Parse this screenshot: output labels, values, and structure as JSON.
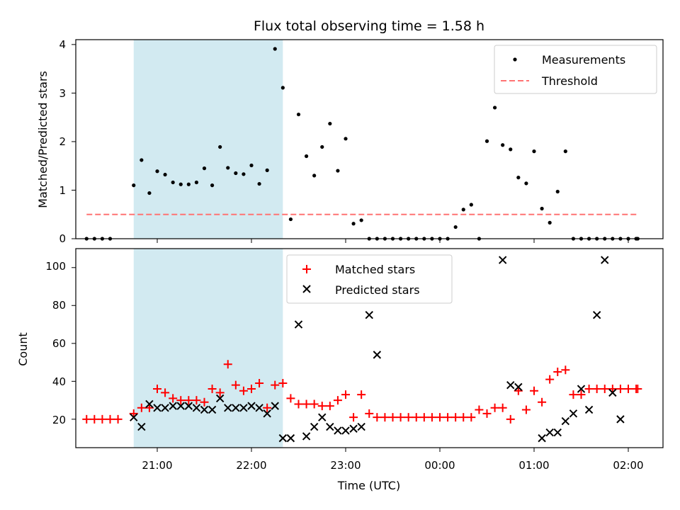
{
  "figure": {
    "title": "Flux total observing time = 1.58 h",
    "xlabel": "Time (UTC)",
    "x_tick_labels": [
      "21:00",
      "22:00",
      "23:00",
      "00:00",
      "01:00",
      "02:00"
    ],
    "highlight_color": "#add8e6",
    "highlight_span": [
      "20:45",
      "22:20"
    ]
  },
  "chart_data": [
    {
      "type": "scatter",
      "ylabel": "Matched/Predicted stars",
      "ylim": [
        0,
        4.1
      ],
      "yticks": [
        "0",
        "1",
        "2",
        "3",
        "4"
      ],
      "legend_position": "top-right",
      "series": [
        {
          "name": "Measurements",
          "color": "#000000",
          "marker": "dot",
          "points": [
            [
              "20:15",
              0
            ],
            [
              "20:20",
              0
            ],
            [
              "20:25",
              0
            ],
            [
              "20:30",
              0
            ],
            [
              "20:45",
              1.1
            ],
            [
              "20:50",
              1.62
            ],
            [
              "20:55",
              0.94
            ],
            [
              "21:00",
              1.39
            ],
            [
              "21:05",
              1.32
            ],
            [
              "21:10",
              1.16
            ],
            [
              "21:15",
              1.12
            ],
            [
              "21:20",
              1.12
            ],
            [
              "21:25",
              1.16
            ],
            [
              "21:30",
              1.45
            ],
            [
              "21:35",
              1.1
            ],
            [
              "21:40",
              1.89
            ],
            [
              "21:45",
              1.46
            ],
            [
              "21:50",
              1.35
            ],
            [
              "21:55",
              1.33
            ],
            [
              "22:00",
              1.51
            ],
            [
              "22:05",
              1.13
            ],
            [
              "22:10",
              1.41
            ],
            [
              "22:15",
              3.91
            ],
            [
              "22:20",
              3.11
            ],
            [
              "22:25",
              0.4
            ],
            [
              "22:30",
              2.56
            ],
            [
              "22:35",
              1.7
            ],
            [
              "22:40",
              1.3
            ],
            [
              "22:45",
              1.89
            ],
            [
              "22:50",
              2.37
            ],
            [
              "22:55",
              1.4
            ],
            [
              "23:00",
              2.06
            ],
            [
              "23:05",
              0.31
            ],
            [
              "23:10",
              0.38
            ],
            [
              "23:15",
              0
            ],
            [
              "23:20",
              0
            ],
            [
              "23:25",
              0
            ],
            [
              "23:30",
              0
            ],
            [
              "23:35",
              0
            ],
            [
              "23:40",
              0
            ],
            [
              "23:45",
              0
            ],
            [
              "23:50",
              0
            ],
            [
              "23:55",
              0
            ],
            [
              "00:00",
              0
            ],
            [
              "00:05",
              0
            ],
            [
              "00:10",
              0.24
            ],
            [
              "00:15",
              0.6
            ],
            [
              "00:20",
              0.7
            ],
            [
              "00:25",
              0
            ],
            [
              "00:30",
              2.01
            ],
            [
              "00:35",
              2.7
            ],
            [
              "00:40",
              1.93
            ],
            [
              "00:45",
              1.84
            ],
            [
              "00:50",
              1.26
            ],
            [
              "00:55",
              1.14
            ],
            [
              "01:00",
              1.8
            ],
            [
              "01:05",
              0.62
            ],
            [
              "01:10",
              0.33
            ],
            [
              "01:15",
              0.97
            ],
            [
              "01:20",
              1.8
            ],
            [
              "01:25",
              0
            ],
            [
              "01:30",
              0
            ],
            [
              "01:35",
              0
            ],
            [
              "01:40",
              0
            ],
            [
              "01:45",
              0
            ],
            [
              "01:50",
              0
            ],
            [
              "01:55",
              0
            ],
            [
              "02:00",
              0
            ],
            [
              "02:05",
              0
            ],
            [
              "02:06",
              0
            ]
          ]
        },
        {
          "name": "Threshold",
          "color": "#ff7373",
          "style": "dashed",
          "points": [
            [
              "20:15",
              0.5
            ],
            [
              "02:06",
              0.5
            ]
          ]
        }
      ]
    },
    {
      "type": "scatter",
      "ylabel": "Count",
      "ylim": [
        5,
        110
      ],
      "yticks": [
        "20",
        "40",
        "60",
        "80",
        "100"
      ],
      "legend_position": "top-center",
      "series": [
        {
          "name": "Matched stars",
          "color": "#ff0000",
          "marker": "plus",
          "points": [
            [
              "20:15",
              20
            ],
            [
              "20:20",
              20
            ],
            [
              "20:25",
              20
            ],
            [
              "20:30",
              20
            ],
            [
              "20:35",
              20
            ],
            [
              "20:45",
              23
            ],
            [
              "20:50",
              26
            ],
            [
              "20:55",
              26
            ],
            [
              "21:00",
              36
            ],
            [
              "21:05",
              34
            ],
            [
              "21:10",
              31
            ],
            [
              "21:15",
              30
            ],
            [
              "21:20",
              30
            ],
            [
              "21:25",
              30
            ],
            [
              "21:30",
              29
            ],
            [
              "21:35",
              36
            ],
            [
              "21:40",
              34
            ],
            [
              "21:45",
              49
            ],
            [
              "21:50",
              38
            ],
            [
              "21:55",
              35
            ],
            [
              "22:00",
              36
            ],
            [
              "22:05",
              39
            ],
            [
              "22:10",
              26
            ],
            [
              "22:15",
              38
            ],
            [
              "22:20",
              39
            ],
            [
              "22:25",
              31
            ],
            [
              "22:30",
              28
            ],
            [
              "22:35",
              28
            ],
            [
              "22:40",
              28
            ],
            [
              "22:45",
              27
            ],
            [
              "22:50",
              27
            ],
            [
              "22:55",
              30
            ],
            [
              "23:00",
              33
            ],
            [
              "23:05",
              21
            ],
            [
              "23:10",
              33
            ],
            [
              "23:15",
              23
            ],
            [
              "23:20",
              21
            ],
            [
              "23:25",
              21
            ],
            [
              "23:30",
              21
            ],
            [
              "23:35",
              21
            ],
            [
              "23:40",
              21
            ],
            [
              "23:45",
              21
            ],
            [
              "23:50",
              21
            ],
            [
              "23:55",
              21
            ],
            [
              "00:00",
              21
            ],
            [
              "00:05",
              21
            ],
            [
              "00:10",
              21
            ],
            [
              "00:15",
              21
            ],
            [
              "00:20",
              21
            ],
            [
              "00:25",
              25
            ],
            [
              "00:30",
              23
            ],
            [
              "00:35",
              26
            ],
            [
              "00:40",
              26
            ],
            [
              "00:45",
              20
            ],
            [
              "00:50",
              35
            ],
            [
              "00:55",
              25
            ],
            [
              "01:00",
              35
            ],
            [
              "01:05",
              29
            ],
            [
              "01:10",
              41
            ],
            [
              "01:15",
              45
            ],
            [
              "01:20",
              46
            ],
            [
              "01:25",
              33
            ],
            [
              "01:30",
              33
            ],
            [
              "01:35",
              36
            ],
            [
              "01:40",
              36
            ],
            [
              "01:45",
              36
            ],
            [
              "01:50",
              36
            ],
            [
              "01:55",
              36
            ],
            [
              "02:00",
              36
            ],
            [
              "02:05",
              36
            ],
            [
              "02:06",
              36
            ]
          ]
        },
        {
          "name": "Predicted stars",
          "color": "#000000",
          "marker": "x",
          "points": [
            [
              "20:45",
              21
            ],
            [
              "20:50",
              16
            ],
            [
              "20:55",
              28
            ],
            [
              "21:00",
              26
            ],
            [
              "21:05",
              26
            ],
            [
              "21:10",
              27
            ],
            [
              "21:15",
              27
            ],
            [
              "21:20",
              27
            ],
            [
              "21:25",
              26
            ],
            [
              "21:30",
              25
            ],
            [
              "21:35",
              25
            ],
            [
              "21:40",
              31
            ],
            [
              "21:45",
              26
            ],
            [
              "21:50",
              26
            ],
            [
              "21:55",
              26
            ],
            [
              "22:00",
              27
            ],
            [
              "22:05",
              26
            ],
            [
              "22:10",
              23
            ],
            [
              "22:15",
              27
            ],
            [
              "22:20",
              10
            ],
            [
              "22:25",
              10
            ],
            [
              "22:30",
              70
            ],
            [
              "22:35",
              11
            ],
            [
              "22:40",
              16
            ],
            [
              "22:45",
              21
            ],
            [
              "22:50",
              16
            ],
            [
              "22:55",
              14
            ],
            [
              "23:00",
              14
            ],
            [
              "23:05",
              15
            ],
            [
              "23:10",
              16
            ],
            [
              "23:15",
              75
            ],
            [
              "23:20",
              54
            ],
            [
              "00:40",
              104
            ],
            [
              "00:45",
              38
            ],
            [
              "00:50",
              37
            ],
            [
              "01:05",
              10
            ],
            [
              "01:10",
              13
            ],
            [
              "01:15",
              13
            ],
            [
              "01:20",
              19
            ],
            [
              "01:25",
              23
            ],
            [
              "01:30",
              36
            ],
            [
              "01:35",
              25
            ],
            [
              "01:40",
              75
            ],
            [
              "01:45",
              104
            ],
            [
              "01:50",
              34
            ],
            [
              "01:55",
              20
            ]
          ]
        }
      ]
    }
  ]
}
